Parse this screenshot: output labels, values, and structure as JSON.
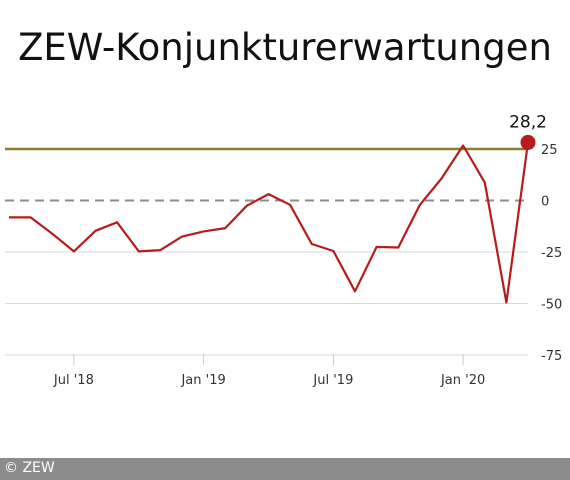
{
  "chart_data": {
    "type": "line",
    "title": "ZEW-Konjunkturerwartungen",
    "xlabel": "",
    "ylabel": "",
    "x": [
      "2018-04",
      "2018-05",
      "2018-06",
      "2018-07",
      "2018-08",
      "2018-09",
      "2018-10",
      "2018-11",
      "2018-12",
      "2019-01",
      "2019-02",
      "2019-03",
      "2019-04",
      "2019-05",
      "2019-06",
      "2019-07",
      "2019-08",
      "2019-09",
      "2019-10",
      "2019-11",
      "2019-12",
      "2020-01",
      "2020-02",
      "2020-03",
      "2020-04"
    ],
    "series": [
      {
        "values": [
          -8.2,
          -8.2,
          -16.1,
          -24.7,
          -14.7,
          -10.6,
          -24.7,
          -24.1,
          -17.5,
          -15.0,
          -13.4,
          -2.5,
          3.1,
          -2.1,
          -21.1,
          -24.5,
          -44.1,
          -22.5,
          -22.8,
          -2.1,
          10.7,
          26.7,
          8.7,
          -49.5,
          28.2
        ],
        "color": "#b71c1c"
      }
    ],
    "reference_line": {
      "value": 25,
      "color": "#8f7d2e"
    },
    "zero_line": {
      "value": 0,
      "color": "#8c8c8c",
      "style": "dashed"
    },
    "last_value_label": "28,2",
    "yticks": [
      25,
      0,
      -25,
      -50,
      -75
    ],
    "ytick_labels": [
      "25",
      "0",
      "-25",
      "-50",
      "-75"
    ],
    "xticks": [
      "2018-07",
      "2019-01",
      "2019-07",
      "2020-01"
    ],
    "xtick_labels": [
      "Jul '18",
      "Jan '19",
      "Jul '19",
      "Jan '20"
    ],
    "ylim": [
      -75,
      35
    ],
    "grid": true
  },
  "footer": {
    "credit": "© ZEW"
  }
}
